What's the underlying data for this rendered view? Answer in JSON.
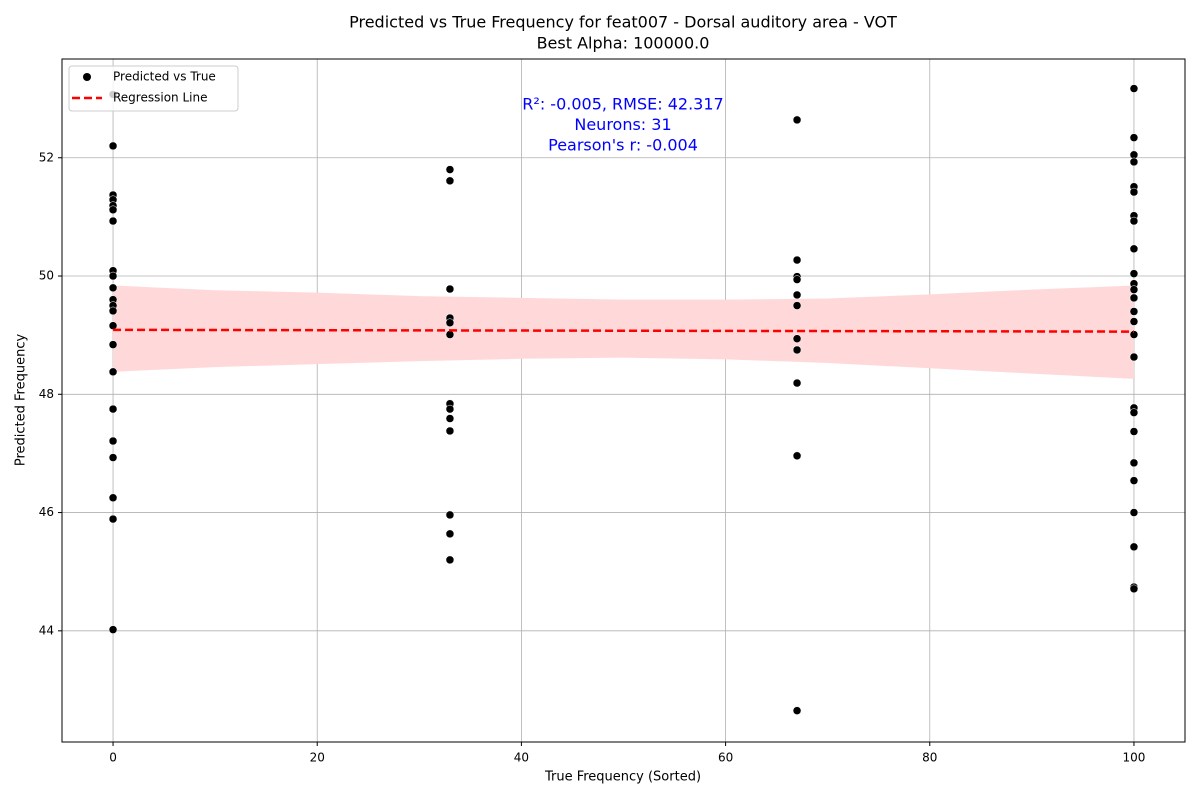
{
  "chart_data": {
    "type": "scatter",
    "title": "Predicted vs True Frequency for feat007 - Dorsal auditory area - VOT",
    "subtitle": "Best Alpha: 100000.0",
    "x_label": "True Frequency (Sorted)",
    "y_label": "Predicted Frequency",
    "annotations": [
      "R²: -0.005, RMSE: 42.317",
      "Neurons: 31",
      "Pearson's r: -0.004"
    ],
    "annotation_color": "#0000ff",
    "xlim": [
      -5,
      105
    ],
    "ylim": [
      42.12,
      53.67
    ],
    "xticks": [
      0,
      20,
      40,
      60,
      80,
      100
    ],
    "yticks": [
      44,
      46,
      48,
      50,
      52
    ],
    "grid": true,
    "legend": "upper left",
    "series": [
      {
        "name": "Predicted vs True",
        "kind": "scatter",
        "color": "#000000",
        "x": [
          0,
          0,
          0,
          0,
          0,
          0,
          0,
          0,
          0,
          0,
          0,
          0,
          0,
          0,
          0,
          0,
          0,
          0,
          0,
          0,
          0,
          0,
          33,
          33,
          33,
          33,
          33,
          33,
          33,
          33,
          33,
          33,
          33,
          33,
          33,
          67,
          67,
          67,
          67,
          67,
          67,
          67,
          67,
          67,
          67,
          67,
          100,
          100,
          100,
          100,
          100,
          100,
          100,
          100,
          100,
          100,
          100,
          100,
          100,
          100,
          100,
          100,
          100,
          100,
          100,
          100,
          100,
          100,
          100,
          100,
          100,
          100
        ],
        "values": [
          53.07,
          52.2,
          51.37,
          51.29,
          51.19,
          51.12,
          50.93,
          50.09,
          50.0,
          49.8,
          49.6,
          49.5,
          49.41,
          49.16,
          48.84,
          48.38,
          47.75,
          47.21,
          46.93,
          46.25,
          45.89,
          44.02,
          51.8,
          51.61,
          49.78,
          49.29,
          49.21,
          49.01,
          47.84,
          47.75,
          47.59,
          47.38,
          45.96,
          45.64,
          45.2,
          52.64,
          50.27,
          49.99,
          49.94,
          49.68,
          49.5,
          48.94,
          48.75,
          48.19,
          46.96,
          42.65,
          53.17,
          52.34,
          52.05,
          51.93,
          51.51,
          51.42,
          51.02,
          50.93,
          50.46,
          50.04,
          49.87,
          49.77,
          49.63,
          49.4,
          49.23,
          49.01,
          48.63,
          47.77,
          47.69,
          47.37,
          46.84,
          46.54,
          46.0,
          45.42,
          44.74,
          44.71
        ]
      },
      {
        "name": "Regression Line",
        "kind": "line",
        "color": "#ff0000",
        "x": [
          0,
          100
        ],
        "values": [
          49.09,
          49.06
        ],
        "band": {
          "color": "#ffd9d9",
          "x": [
            0,
            10,
            20,
            30,
            40,
            50,
            60,
            70,
            80,
            90,
            100
          ],
          "upper": [
            49.84,
            49.76,
            49.72,
            49.66,
            49.63,
            49.6,
            49.6,
            49.62,
            49.69,
            49.77,
            49.84
          ],
          "lower": [
            48.38,
            48.46,
            48.51,
            48.56,
            48.6,
            48.62,
            48.59,
            48.53,
            48.44,
            48.35,
            48.26
          ]
        }
      }
    ]
  }
}
